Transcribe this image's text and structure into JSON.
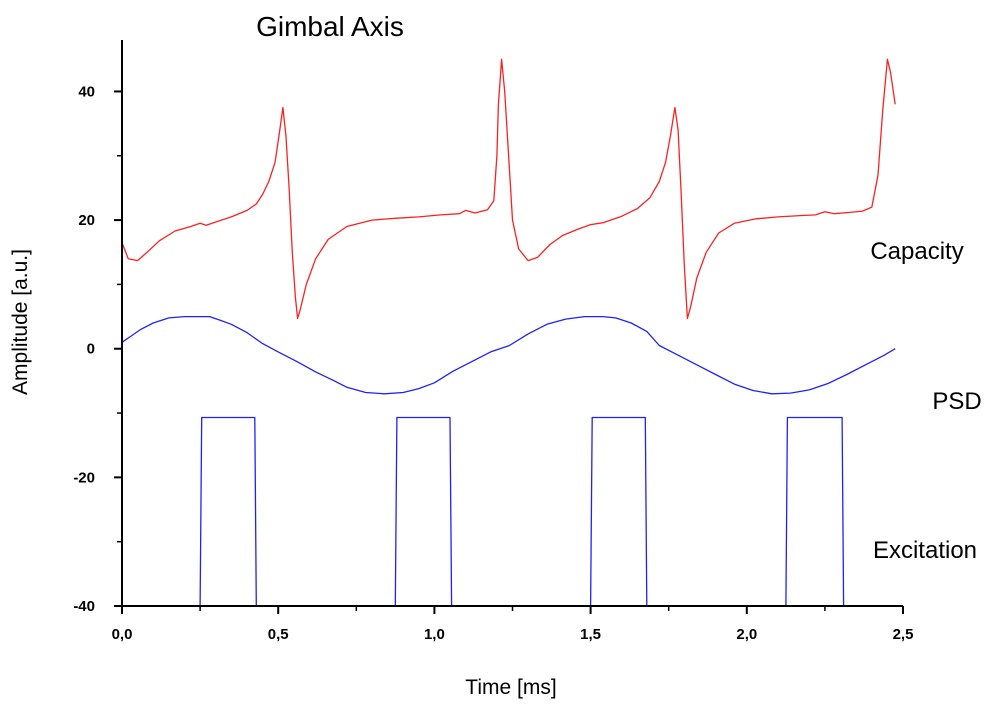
{
  "chart_data": {
    "type": "line",
    "title": "Gimbal Axis",
    "xlabel": "Time [ms]",
    "ylabel": "Amplitude [a.u.]",
    "xlim": [
      0,
      2.5
    ],
    "ylim": [
      -40,
      48
    ],
    "x_ticks": [
      "0,0",
      "0,5",
      "1,0",
      "1,5",
      "2,0",
      "2,5"
    ],
    "y_ticks": [
      "-40",
      "-20",
      "0",
      "20",
      "40"
    ],
    "grid": false,
    "series": [
      {
        "name": "Capacity",
        "color": "#ff2020",
        "points": [
          [
            0.0,
            16.5
          ],
          [
            0.02,
            14.0
          ],
          [
            0.05,
            13.7
          ],
          [
            0.08,
            15.0
          ],
          [
            0.12,
            16.8
          ],
          [
            0.17,
            18.3
          ],
          [
            0.22,
            19.0
          ],
          [
            0.25,
            19.5
          ],
          [
            0.27,
            19.2
          ],
          [
            0.3,
            19.7
          ],
          [
            0.35,
            20.5
          ],
          [
            0.4,
            21.5
          ],
          [
            0.43,
            22.5
          ],
          [
            0.45,
            24.0
          ],
          [
            0.47,
            26.0
          ],
          [
            0.49,
            29.0
          ],
          [
            0.505,
            34.0
          ],
          [
            0.515,
            37.5
          ],
          [
            0.525,
            33.0
          ],
          [
            0.535,
            25.0
          ],
          [
            0.545,
            15.0
          ],
          [
            0.555,
            8.0
          ],
          [
            0.562,
            4.7
          ],
          [
            0.57,
            6.0
          ],
          [
            0.59,
            10.0
          ],
          [
            0.62,
            14.0
          ],
          [
            0.66,
            17.0
          ],
          [
            0.72,
            19.0
          ],
          [
            0.8,
            20.0
          ],
          [
            0.88,
            20.3
          ],
          [
            0.95,
            20.5
          ],
          [
            1.02,
            20.8
          ],
          [
            1.08,
            21.0
          ],
          [
            1.1,
            21.5
          ],
          [
            1.13,
            21.1
          ],
          [
            1.17,
            21.6
          ],
          [
            1.19,
            23.0
          ],
          [
            1.2,
            30.0
          ],
          [
            1.205,
            38.0
          ],
          [
            1.215,
            45.0
          ],
          [
            1.225,
            40.0
          ],
          [
            1.24,
            28.0
          ],
          [
            1.25,
            20.0
          ],
          [
            1.27,
            15.5
          ],
          [
            1.3,
            13.7
          ],
          [
            1.33,
            14.2
          ],
          [
            1.37,
            16.2
          ],
          [
            1.41,
            17.6
          ],
          [
            1.46,
            18.6
          ],
          [
            1.5,
            19.3
          ],
          [
            1.54,
            19.6
          ],
          [
            1.6,
            20.6
          ],
          [
            1.65,
            21.8
          ],
          [
            1.69,
            23.5
          ],
          [
            1.72,
            26.0
          ],
          [
            1.74,
            29.0
          ],
          [
            1.755,
            33.0
          ],
          [
            1.77,
            37.5
          ],
          [
            1.78,
            34.0
          ],
          [
            1.79,
            24.0
          ],
          [
            1.8,
            13.0
          ],
          [
            1.81,
            4.7
          ],
          [
            1.82,
            6.5
          ],
          [
            1.84,
            11.0
          ],
          [
            1.87,
            15.0
          ],
          [
            1.91,
            18.0
          ],
          [
            1.96,
            19.5
          ],
          [
            2.03,
            20.2
          ],
          [
            2.1,
            20.5
          ],
          [
            2.17,
            20.7
          ],
          [
            2.22,
            20.8
          ],
          [
            2.25,
            21.3
          ],
          [
            2.28,
            21.0
          ],
          [
            2.33,
            21.2
          ],
          [
            2.37,
            21.4
          ],
          [
            2.4,
            22.0
          ],
          [
            2.42,
            27.0
          ],
          [
            2.435,
            37.0
          ],
          [
            2.45,
            45.0
          ],
          [
            2.46,
            43.0
          ],
          [
            2.475,
            38.0
          ]
        ]
      },
      {
        "name": "PSD",
        "color": "#2020ff",
        "points": [
          [
            0.0,
            1.0
          ],
          [
            0.03,
            2.0
          ],
          [
            0.06,
            3.0
          ],
          [
            0.1,
            4.0
          ],
          [
            0.15,
            4.8
          ],
          [
            0.2,
            5.0
          ],
          [
            0.25,
            5.0
          ],
          [
            0.28,
            5.0
          ],
          [
            0.31,
            4.5
          ],
          [
            0.35,
            3.8
          ],
          [
            0.4,
            2.5
          ],
          [
            0.45,
            0.8
          ],
          [
            0.5,
            -0.5
          ],
          [
            0.56,
            -2.0
          ],
          [
            0.62,
            -3.6
          ],
          [
            0.68,
            -5.0
          ],
          [
            0.72,
            -6.0
          ],
          [
            0.78,
            -6.8
          ],
          [
            0.84,
            -7.0
          ],
          [
            0.9,
            -6.8
          ],
          [
            0.95,
            -6.2
          ],
          [
            1.0,
            -5.3
          ],
          [
            1.06,
            -3.5
          ],
          [
            1.12,
            -2.0
          ],
          [
            1.18,
            -0.5
          ],
          [
            1.24,
            0.5
          ],
          [
            1.3,
            2.3
          ],
          [
            1.36,
            3.8
          ],
          [
            1.42,
            4.6
          ],
          [
            1.48,
            5.0
          ],
          [
            1.54,
            5.0
          ],
          [
            1.58,
            4.8
          ],
          [
            1.63,
            4.0
          ],
          [
            1.68,
            2.7
          ],
          [
            1.72,
            0.5
          ],
          [
            1.78,
            -1.0
          ],
          [
            1.84,
            -2.5
          ],
          [
            1.9,
            -4.0
          ],
          [
            1.96,
            -5.5
          ],
          [
            2.02,
            -6.5
          ],
          [
            2.08,
            -7.0
          ],
          [
            2.14,
            -6.9
          ],
          [
            2.2,
            -6.4
          ],
          [
            2.26,
            -5.4
          ],
          [
            2.32,
            -4.0
          ],
          [
            2.38,
            -2.5
          ],
          [
            2.44,
            -1.0
          ],
          [
            2.475,
            0.0
          ]
        ]
      },
      {
        "name": "Excitation",
        "color": "#2020ff",
        "points": [
          [
            0.0,
            -40.0
          ],
          [
            0.25,
            -40.0
          ],
          [
            0.255,
            -10.7
          ],
          [
            0.425,
            -10.7
          ],
          [
            0.43,
            -40.0
          ],
          [
            0.875,
            -40.0
          ],
          [
            0.88,
            -10.7
          ],
          [
            1.05,
            -10.7
          ],
          [
            1.055,
            -40.0
          ],
          [
            1.5,
            -40.0
          ],
          [
            1.505,
            -10.7
          ],
          [
            1.675,
            -10.7
          ],
          [
            1.68,
            -40.0
          ],
          [
            2.125,
            -40.0
          ],
          [
            2.13,
            -10.7
          ],
          [
            2.305,
            -10.7
          ],
          [
            2.31,
            -40.0
          ],
          [
            2.475,
            -40.0
          ]
        ]
      }
    ]
  }
}
